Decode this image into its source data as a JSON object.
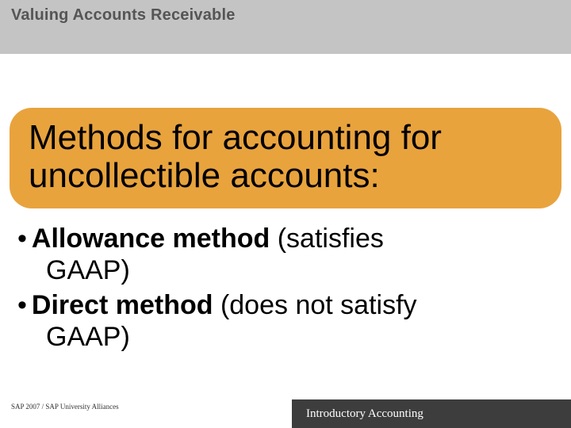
{
  "header": {
    "title": "Valuing Accounts Receivable",
    "bar_color": "#c4c4c4",
    "title_color": "#555555",
    "title_fontsize": 20
  },
  "callout": {
    "text": "Methods for accounting for uncollectible accounts:",
    "background_color": "#e8a33d",
    "text_color": "#000000",
    "fontsize": 44,
    "border_radius": 28
  },
  "bullets": [
    {
      "marker": "•",
      "bold": "Allowance method",
      "rest_line1": " (satisfies",
      "rest_line2": "GAAP)"
    },
    {
      "marker": "•",
      "bold": "Direct method",
      "rest_line1": " (does not satisfy",
      "rest_line2": "GAAP)"
    }
  ],
  "bullet_style": {
    "fontsize": 34,
    "text_color": "#000000"
  },
  "footer": {
    "left_text": "SAP 2007 / SAP University Alliances",
    "right_text": "Introductory Accounting",
    "right_bg": "#3d3d3d",
    "right_color": "#ffffff"
  }
}
